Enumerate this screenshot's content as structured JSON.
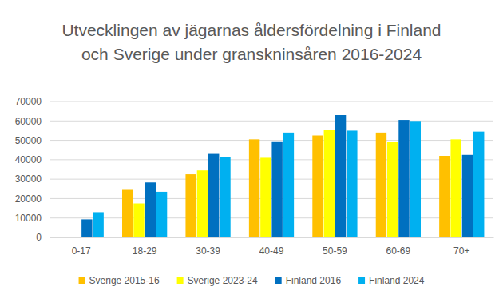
{
  "chart_data": {
    "type": "bar",
    "title": "Utvecklingen av jägarnas åldersfördelning i Finland och Sverige under granskninsåren 2016-2024",
    "categories": [
      "0-17",
      "18-29",
      "30-39",
      "40-49",
      "50-59",
      "60-69",
      "70+"
    ],
    "series": [
      {
        "name": "Sverige 2015-16",
        "color": "#FFC000",
        "values": [
          300,
          24500,
          32500,
          50500,
          52500,
          54000,
          42000
        ]
      },
      {
        "name": "Sverige 2023-24",
        "color": "#FFFF00",
        "values": [
          200,
          17500,
          34500,
          41000,
          55500,
          49000,
          50500
        ]
      },
      {
        "name": "Finland 2016",
        "color": "#0070C0",
        "values": [
          9300,
          28300,
          43000,
          49500,
          63000,
          60500,
          42500
        ]
      },
      {
        "name": "Finland 2024",
        "color": "#00B0F0",
        "values": [
          13000,
          23500,
          41500,
          54000,
          55000,
          60000,
          54500
        ]
      }
    ],
    "ylim": [
      0,
      70000
    ],
    "yticks": [
      0,
      10000,
      20000,
      30000,
      40000,
      50000,
      60000,
      70000
    ],
    "grid": true,
    "legend": "bottom"
  }
}
